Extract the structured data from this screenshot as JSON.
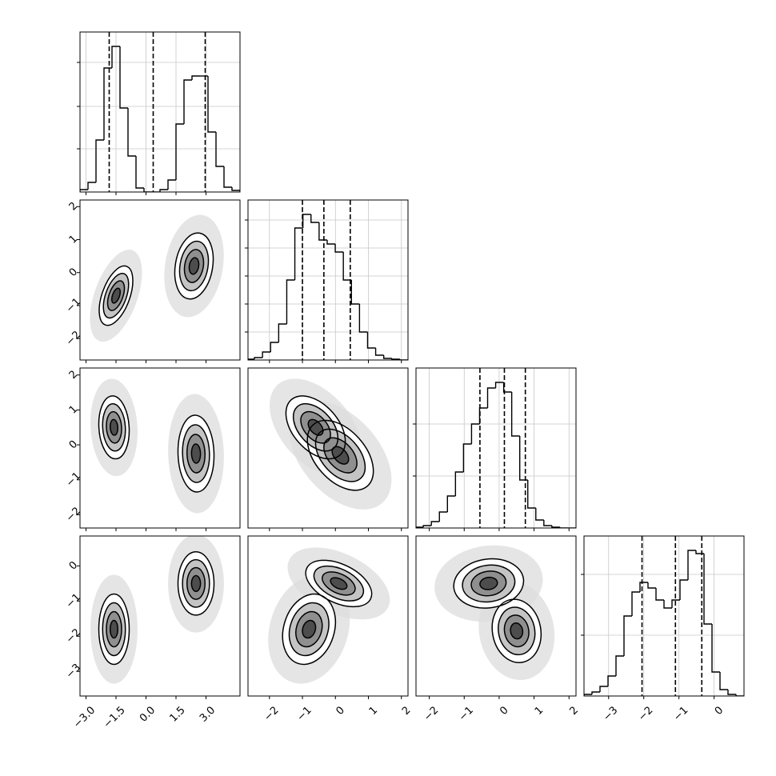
{
  "chart_data": {
    "type": "corner",
    "params": [
      {
        "lim": [
          -3.3,
          4.7
        ],
        "ticks": [
          {
            "value": -3.0,
            "label": "−3.0"
          },
          {
            "value": -1.5,
            "label": "−1.5"
          },
          {
            "value": 0.0,
            "label": "0.0"
          },
          {
            "value": 1.5,
            "label": "1.5"
          },
          {
            "value": 3.0,
            "label": "3.0"
          }
        ]
      },
      {
        "lim": [
          -2.65,
          2.2
        ],
        "ticks": [
          {
            "value": -2,
            "label": "−2"
          },
          {
            "value": -1,
            "label": "−1"
          },
          0,
          1,
          2
        ]
      },
      {
        "lim": [
          -2.38,
          2.2
        ],
        "ticks": [
          {
            "value": -2,
            "label": "−2"
          },
          {
            "value": -1,
            "label": "−1"
          },
          0,
          1,
          2
        ]
      },
      {
        "lim": [
          -3.7,
          0.85
        ],
        "ticks": [
          {
            "value": -3,
            "label": "−3"
          },
          {
            "value": -2,
            "label": "−2"
          },
          {
            "value": -1,
            "label": "−1"
          },
          0
        ]
      }
    ],
    "histograms": [
      {
        "bins": [
          -3.3,
          -2.9,
          -2.5,
          -2.1,
          -1.7,
          -1.3,
          -0.9,
          -0.5,
          -0.1,
          0.3,
          0.7,
          1.1,
          1.5,
          1.9,
          2.3,
          2.7,
          3.1,
          3.5,
          3.9,
          4.3,
          4.7
        ],
        "counts": [
          3,
          12,
          65,
          155,
          182,
          105,
          45,
          5,
          0,
          0,
          3,
          15,
          85,
          140,
          145,
          145,
          75,
          32,
          6,
          2
        ],
        "quantiles": [
          -1.84,
          0.36,
          2.96
        ],
        "ylim": [
          0,
          200
        ],
        "yticks": [
          54,
          107,
          162
        ]
      },
      {
        "bins": [
          -2.7,
          -2.455,
          -2.21,
          -1.965,
          -1.72,
          -1.475,
          -1.23,
          -0.985,
          -0.74,
          -0.495,
          -0.25,
          -0.005,
          0.24,
          0.485,
          0.73,
          0.975,
          1.22,
          1.465,
          1.71,
          1.955,
          2.2
        ],
        "counts": [
          1,
          3,
          10,
          22,
          45,
          100,
          165,
          182,
          172,
          150,
          145,
          135,
          100,
          70,
          35,
          15,
          6,
          2,
          1,
          0
        ],
        "quantiles": [
          -1.0,
          -0.35,
          0.45
        ],
        "ylim": [
          0,
          200
        ],
        "yticks": [
          35,
          70,
          105,
          140,
          175
        ]
      },
      {
        "bins": [
          -2.4,
          -2.17,
          -1.94,
          -1.71,
          -1.48,
          -1.25,
          -1.02,
          -0.79,
          -0.56,
          -0.33,
          -0.1,
          0.13,
          0.36,
          0.59,
          0.82,
          1.05,
          1.28,
          1.51,
          1.74,
          1.97,
          2.2
        ],
        "counts": [
          1,
          3,
          8,
          20,
          40,
          70,
          105,
          130,
          150,
          175,
          182,
          170,
          115,
          60,
          25,
          10,
          3,
          1,
          0,
          0
        ],
        "quantiles": [
          -0.55,
          0.15,
          0.75
        ],
        "ylim": [
          0,
          200
        ],
        "yticks": [
          65,
          130
        ]
      },
      {
        "bins": [
          -3.7,
          -3.4725,
          -3.245,
          -3.0175,
          -2.79,
          -2.5625,
          -2.335,
          -2.1075,
          -1.88,
          -1.6525,
          -1.425,
          -1.1975,
          -0.97,
          -0.7425,
          -0.515,
          -0.2875,
          -0.06,
          0.1675,
          0.395,
          0.6225,
          0.85
        ],
        "counts": [
          2,
          5,
          12,
          25,
          50,
          100,
          130,
          142,
          135,
          120,
          110,
          120,
          145,
          182,
          178,
          90,
          30,
          8,
          2,
          0
        ],
        "quantiles": [
          -2.05,
          -1.1,
          -0.35
        ],
        "ylim": [
          0,
          200
        ],
        "yticks": [
          76,
          152
        ]
      }
    ],
    "levels": [
      0.5,
      1,
      1.5,
      2
    ],
    "pairs": [
      {
        "x": 0,
        "y": 1,
        "components": [
          {
            "mean": [
              -1.5,
              -0.7
            ],
            "sd": [
              0.42,
              0.45
            ],
            "corr": 0.5
          },
          {
            "mean": [
              2.4,
              0.2
            ],
            "sd": [
              0.48,
              0.5
            ],
            "corr": 0.2
          }
        ]
      },
      {
        "x": 0,
        "y": 2,
        "components": [
          {
            "mean": [
              -1.6,
              0.5
            ],
            "sd": [
              0.38,
              0.45
            ],
            "corr": -0.1
          },
          {
            "mean": [
              2.5,
              -0.25
            ],
            "sd": [
              0.45,
              0.55
            ],
            "corr": -0.05
          }
        ]
      },
      {
        "x": 0,
        "y": 3,
        "components": [
          {
            "mean": [
              -1.6,
              -1.8
            ],
            "sd": [
              0.38,
              0.5
            ],
            "corr": 0.0
          },
          {
            "mean": [
              2.5,
              -0.5
            ],
            "sd": [
              0.45,
              0.45
            ],
            "corr": 0.0
          }
        ]
      },
      {
        "x": 1,
        "y": 2,
        "components": [
          {
            "mean": [
              -0.6,
              0.5
            ],
            "sd": [
              0.45,
              0.45
            ],
            "corr": -0.45
          },
          {
            "mean": [
              0.15,
              -0.3
            ],
            "sd": [
              0.5,
              0.5
            ],
            "corr": -0.45
          }
        ]
      },
      {
        "x": 1,
        "y": 3,
        "components": [
          {
            "mean": [
              -0.8,
              -1.8
            ],
            "sd": [
              0.4,
              0.5
            ],
            "corr": 0.2
          },
          {
            "mean": [
              0.1,
              -0.5
            ],
            "sd": [
              0.5,
              0.33
            ],
            "corr": -0.45
          }
        ]
      },
      {
        "x": 2,
        "y": 3,
        "components": [
          {
            "mean": [
              -0.3,
              -0.5
            ],
            "sd": [
              0.5,
              0.35
            ],
            "corr": 0.1
          },
          {
            "mean": [
              0.5,
              -1.85
            ],
            "sd": [
              0.35,
              0.45
            ],
            "corr": -0.1
          }
        ]
      }
    ]
  }
}
